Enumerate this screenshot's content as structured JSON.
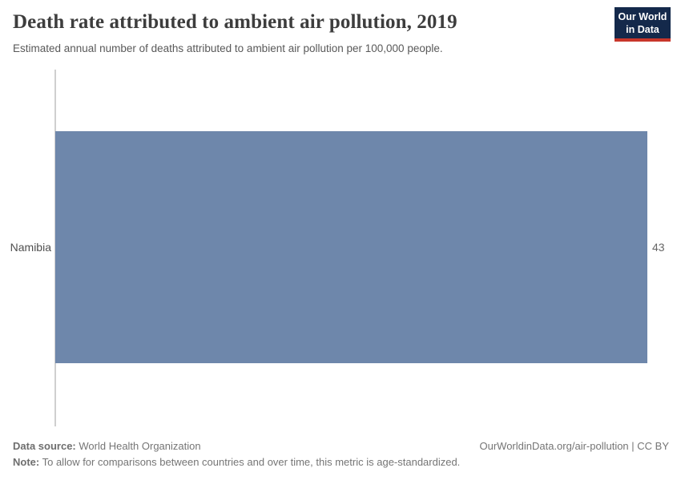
{
  "header": {
    "title": "Death rate attributed to ambient air pollution, 2019",
    "subtitle": "Estimated annual number of deaths attributed to ambient air pollution per 100,000 people.",
    "logo": {
      "line1": "Our World",
      "line2": "in Data",
      "bg_color": "#14294b",
      "accent_color": "#c8362b"
    }
  },
  "chart_data": {
    "type": "bar",
    "orientation": "horizontal",
    "title": "Death rate attributed to ambient air pollution, 2019",
    "subtitle": "Estimated annual number of deaths attributed to ambient air pollution per 100,000 people.",
    "categories": [
      "Namibia"
    ],
    "values": [
      43
    ],
    "value_labels": [
      "43"
    ],
    "xlabel": "",
    "ylabel": "",
    "xlim": [
      0,
      43
    ],
    "grid": false,
    "legend": false,
    "bar_color": "#6e87ab",
    "axis_line_color": "#cfcfcf"
  },
  "footer": {
    "source_label": "Data source:",
    "source_value": "World Health Organization",
    "note_label": "Note:",
    "note_value": "To allow for comparisons between countries and over time, this metric is age-standardized.",
    "attribution": "OurWorldinData.org/air-pollution | CC BY"
  }
}
